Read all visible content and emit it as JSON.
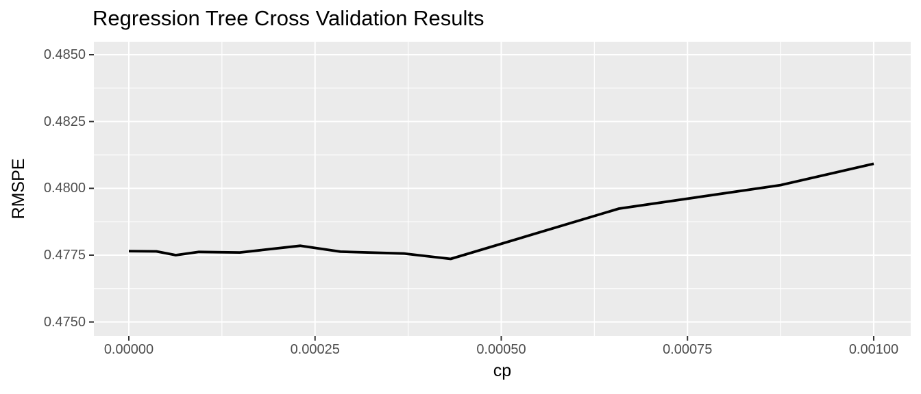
{
  "chart_data": {
    "type": "line",
    "title": "Regression Tree Cross Validation Results",
    "xlabel": "cp",
    "ylabel": "RMSPE",
    "legend": "none",
    "grid": "major+minor",
    "x_ticks": {
      "values": [
        0.0,
        0.00025,
        0.0005,
        0.00075,
        0.001
      ],
      "labels": [
        "0.00000",
        "0.00025",
        "0.00050",
        "0.00075",
        "0.00100"
      ]
    },
    "y_ticks": {
      "values": [
        0.475,
        0.4775,
        0.48,
        0.4825,
        0.485
      ],
      "labels": [
        "0.4750",
        "0.4775",
        "0.4800",
        "0.4825",
        "0.4850"
      ]
    },
    "xlim": [
      -4.69e-05,
      0.0010497
    ],
    "ylim": [
      0.47448,
      0.485486
    ],
    "series": [
      {
        "name": "RMSPE",
        "x": [
          0.0,
          3.7e-05,
          6.3e-05,
          9.4e-05,
          0.000149,
          0.00023,
          0.000284,
          0.00037,
          0.000432,
          0.000658,
          0.000875,
          0.001
        ],
        "y": [
          0.47765,
          0.47764,
          0.4775,
          0.47762,
          0.4776,
          0.47785,
          0.47763,
          0.47756,
          0.47736,
          0.47924,
          0.48012,
          0.48092
        ]
      }
    ]
  },
  "style": {
    "page_bg": "#ffffff",
    "panel_bg": "#ebebeb",
    "grid_color": "#ffffff",
    "line_color": "#000000",
    "tick_mark_color": "#333333",
    "tick_label_color": "#4d4d4d",
    "title_color": "#000000"
  }
}
